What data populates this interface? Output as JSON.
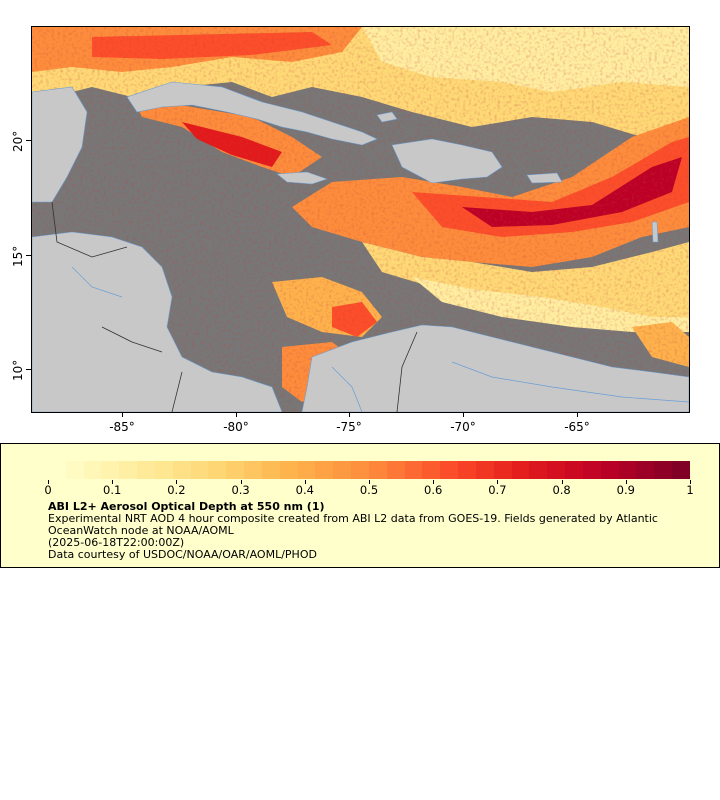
{
  "map": {
    "x_ticks": [
      "-85°",
      "-80°",
      "-75°",
      "-70°",
      "-65°"
    ],
    "y_ticks": [
      "20°",
      "15°",
      "10°"
    ],
    "colors": {
      "no_data": "#777777",
      "land": "#c8c8c8",
      "rivers": "#6a9ed6",
      "borders": "#333333"
    }
  },
  "colorbar": {
    "ticks": [
      "0",
      "0.1",
      "0.2",
      "0.3",
      "0.4",
      "0.5",
      "0.6",
      "0.7",
      "0.8",
      "0.9",
      "1"
    ],
    "colors": [
      "#ffffcc",
      "#ffeda0",
      "#fed976",
      "#feb24c",
      "#fd8d3c",
      "#fc4e2a",
      "#e31a1c",
      "#bd0026",
      "#800026"
    ]
  },
  "legend": {
    "title": "ABI L2+ Aerosol Optical Depth at 550 nm (1)",
    "description": "Experimental NRT AOD 4 hour composite created from ABI L2 data from GOES-19. Fields generated by Atlantic OceanWatch node at NOAA/AOML",
    "time": "(2025-06-18T22:00:00Z)",
    "credit": "Data courtesy of USDOC/NOAA/OAR/AOML/PHOD"
  }
}
